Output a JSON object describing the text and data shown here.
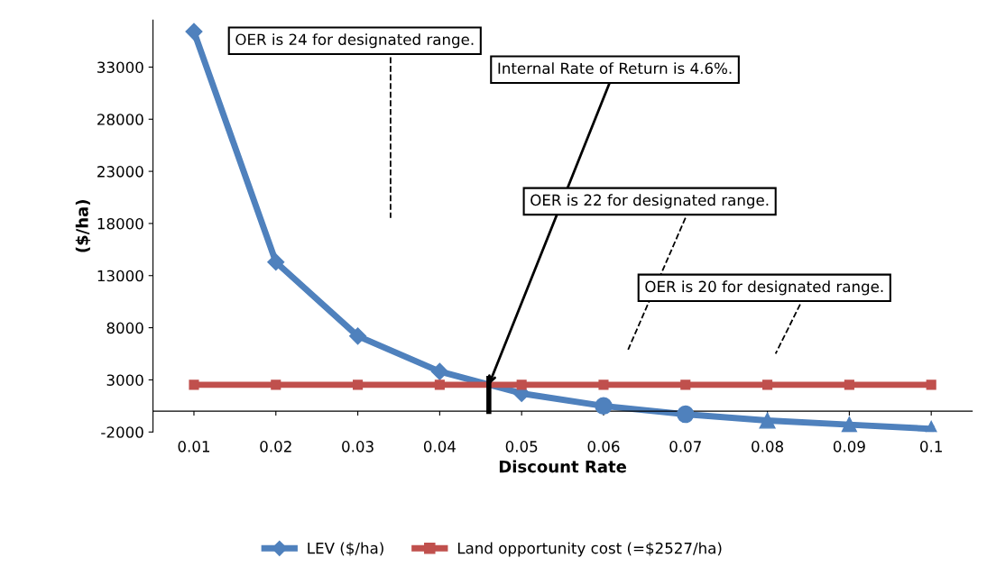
{
  "chart_data": {
    "type": "line",
    "xlabel": "Discount Rate",
    "ylabel": "($/ha)",
    "x": [
      0.01,
      0.02,
      0.03,
      0.04,
      0.05,
      0.06,
      0.07,
      0.08,
      0.09,
      0.1
    ],
    "series": [
      {
        "name": "LEV ($/ha)",
        "color": "#4f81bd",
        "values": [
          36400,
          14300,
          7200,
          3800,
          1700,
          500,
          -300,
          -900,
          -1300,
          -1700
        ],
        "marker": [
          "diamond",
          "diamond",
          "diamond",
          "diamond",
          "diamond",
          "circle",
          "circle",
          "triangle",
          "triangle",
          "triangle"
        ]
      },
      {
        "name": "Land opportunity cost (=$2527/ha)",
        "color": "#c0504d",
        "values": [
          2527,
          2527,
          2527,
          2527,
          2527,
          2527,
          2527,
          2527,
          2527,
          2527
        ],
        "marker": "square"
      }
    ],
    "xlim": [
      0.005,
      0.105
    ],
    "xticks": [
      0.01,
      0.02,
      0.03,
      0.04,
      0.05,
      0.06,
      0.07,
      0.08,
      0.09,
      0.1
    ],
    "ylim": [
      -2000,
      37500
    ],
    "yticks": [
      -2000,
      3000,
      8000,
      13000,
      18000,
      23000,
      28000,
      33000
    ],
    "ref_lines": [
      {
        "axis": "x",
        "value": 0.046,
        "color": "#000000"
      }
    ],
    "annotations": [
      "OER is 24 for designated range.",
      {
        "text": "Internal Rate of Return is 4.6%.",
        "x": 0.046,
        "y": 2527
      },
      "OER is 22 for designated range.",
      "OER is 20 for designated range."
    ],
    "legend": "bottom",
    "grid": false
  }
}
